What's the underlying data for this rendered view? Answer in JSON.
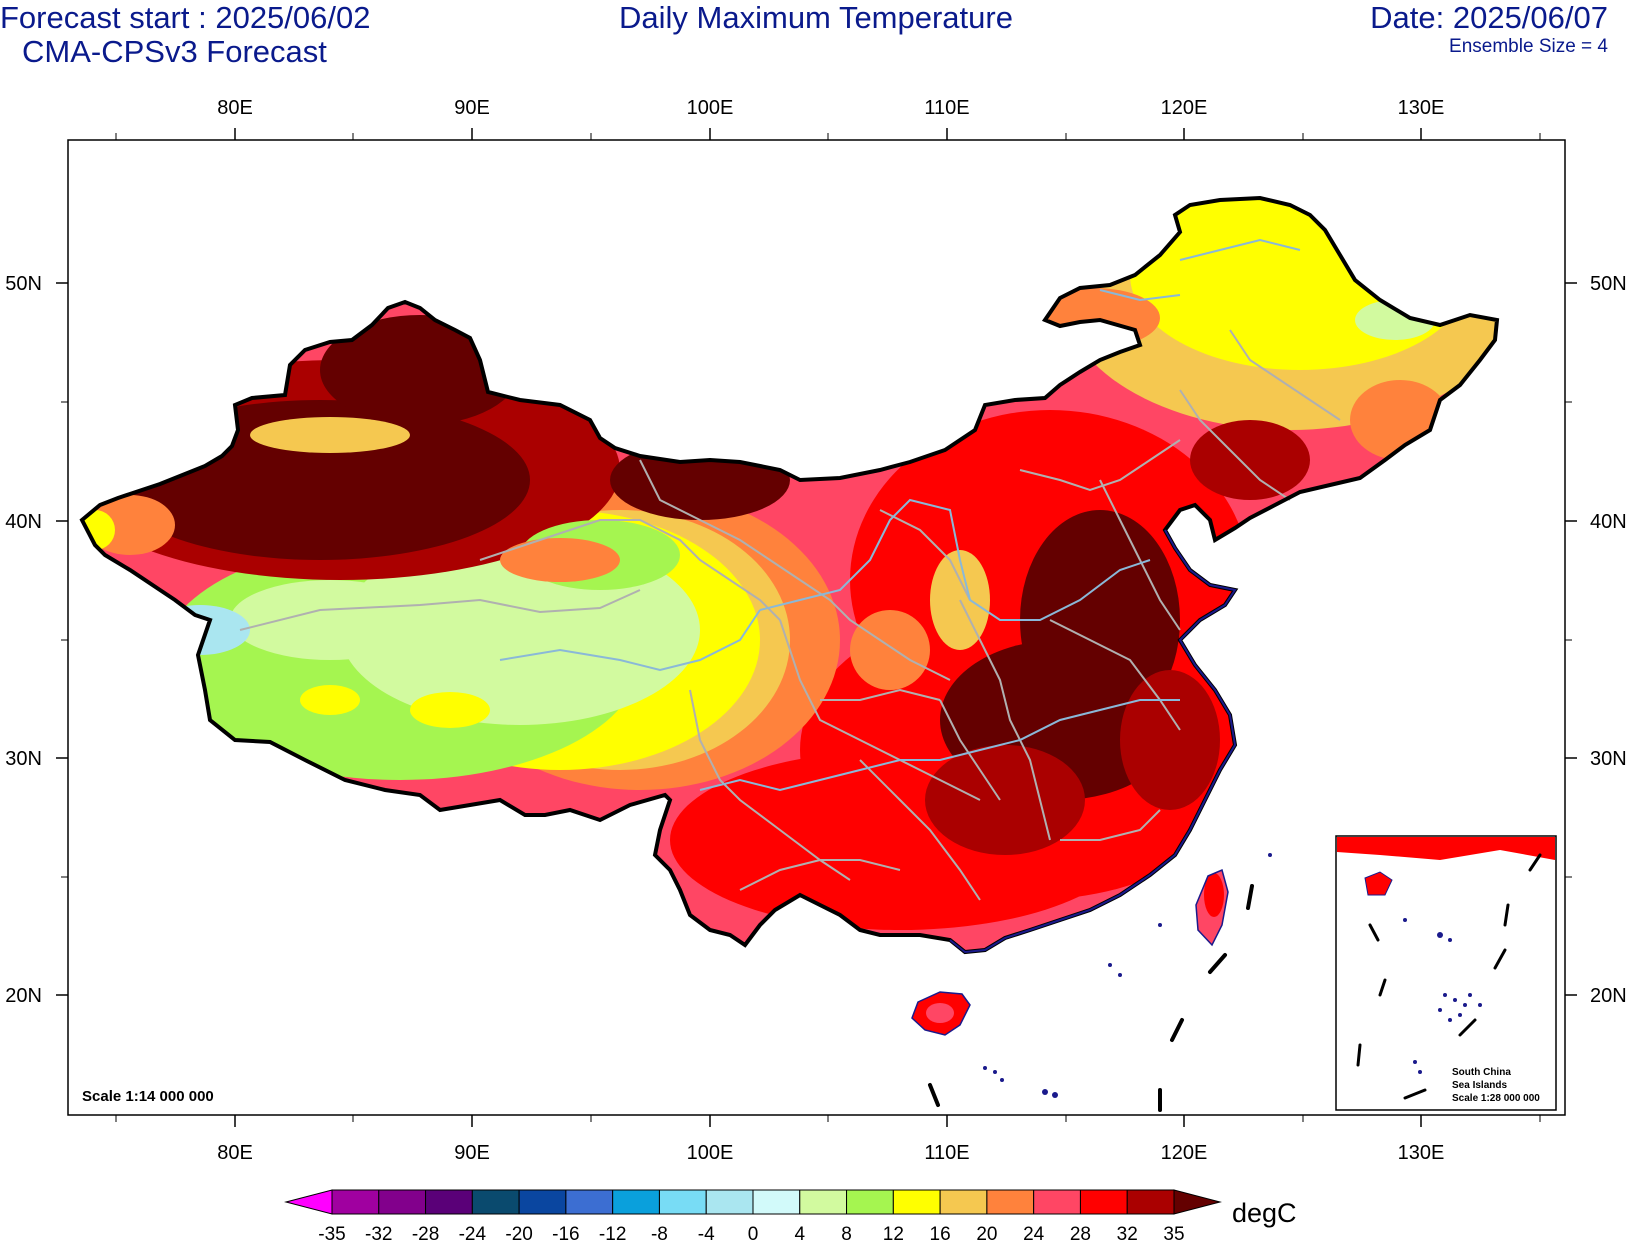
{
  "header": {
    "forecast_start": "Forecast start : 2025/06/02",
    "model": "CMA-CPSv3 Forecast",
    "title": "Daily Maximum Temperature",
    "date": "Date: 2025/06/07",
    "ensemble": "Ensemble Size = 4"
  },
  "map": {
    "lon_ticks": [
      "80E",
      "90E",
      "100E",
      "110E",
      "120E",
      "130E"
    ],
    "lat_ticks": [
      "50N",
      "40N",
      "30N",
      "20N"
    ],
    "scale_label": "Scale 1:14 000 000",
    "inset": {
      "line1": "South China",
      "line2": "Sea Islands",
      "line3": "Scale 1:28 000 000"
    }
  },
  "colorbar": {
    "labels": [
      "-35",
      "-32",
      "-28",
      "-24",
      "-20",
      "-16",
      "-12",
      "-8",
      "-4",
      "0",
      "4",
      "8",
      "12",
      "16",
      "20",
      "24",
      "28",
      "32",
      "35"
    ],
    "colors": [
      "#ff00ff",
      "#a000a0",
      "#82008c",
      "#5a0078",
      "#0a4a6e",
      "#0a46a0",
      "#3c6ed2",
      "#0aa0dc",
      "#78dcf5",
      "#aae6f0",
      "#d2fafa",
      "#d2fa9f",
      "#a5f550",
      "#ffff00",
      "#f5c850",
      "#ff823c",
      "#ff4664",
      "#ff0000",
      "#aa0000",
      "#640000"
    ],
    "unit": "degC"
  }
}
